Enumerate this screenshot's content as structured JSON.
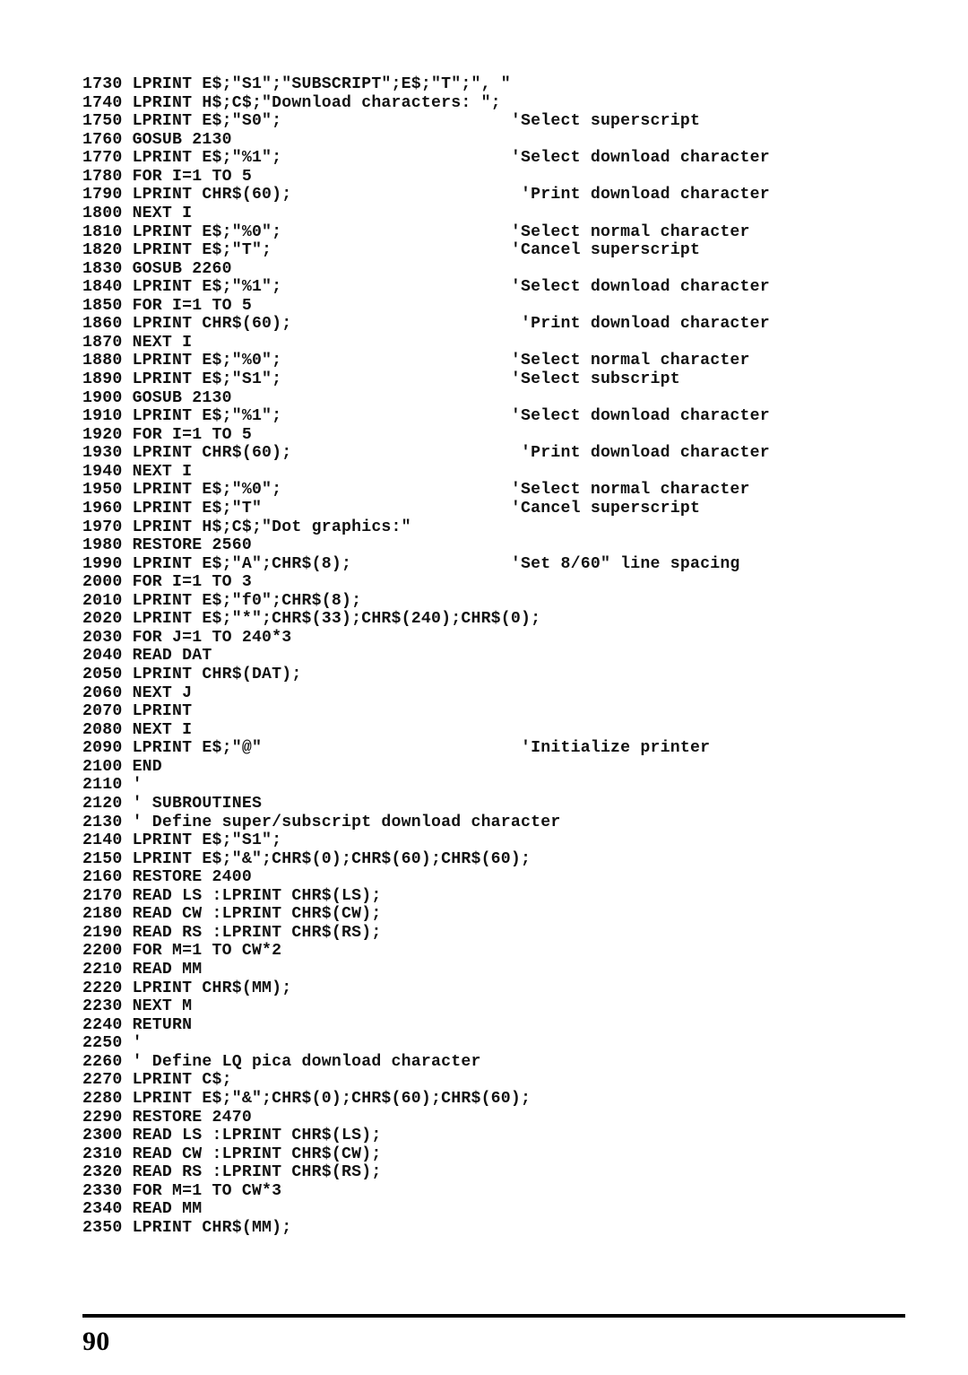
{
  "page_number": "90",
  "code_lines": [
    "1730 LPRINT E$;\"S1\";\"SUBSCRIPT\";E$;\"T\";\", \"",
    "1740 LPRINT H$;C$;\"Download characters: \";",
    "1750 LPRINT E$;\"S0\";                       'Select superscript",
    "1760 GOSUB 2130",
    "1770 LPRINT E$;\"%1\";                       'Select download character",
    "1780 FOR I=1 TO 5",
    "1790 LPRINT CHR$(60);                       'Print download character",
    "1800 NEXT I",
    "1810 LPRINT E$;\"%0\";                       'Select normal character",
    "1820 LPRINT E$;\"T\";                        'Cancel superscript",
    "1830 GOSUB 2260",
    "1840 LPRINT E$;\"%1\";                       'Select download character",
    "1850 FOR I=1 TO 5",
    "1860 LPRINT CHR$(60);                       'Print download character",
    "1870 NEXT I",
    "1880 LPRINT E$;\"%0\";                       'Select normal character",
    "1890 LPRINT E$;\"S1\";                       'Select subscript",
    "1900 GOSUB 2130",
    "1910 LPRINT E$;\"%1\";                       'Select download character",
    "1920 FOR I=1 TO 5",
    "1930 LPRINT CHR$(60);                       'Print download character",
    "1940 NEXT I",
    "1950 LPRINT E$;\"%0\";                       'Select normal character",
    "1960 LPRINT E$;\"T\"                         'Cancel superscript",
    "1970 LPRINT H$;C$;\"Dot graphics:\"",
    "1980 RESTORE 2560",
    "1990 LPRINT E$;\"A\";CHR$(8);                'Set 8/60\" line spacing",
    "2000 FOR I=1 TO 3",
    "2010 LPRINT E$;\"f0\";CHR$(8);",
    "2020 LPRINT E$;\"*\";CHR$(33);CHR$(240);CHR$(0);",
    "2030 FOR J=1 TO 240*3",
    "2040 READ DAT",
    "2050 LPRINT CHR$(DAT);",
    "2060 NEXT J",
    "2070 LPRINT",
    "2080 NEXT I",
    "2090 LPRINT E$;\"@\"                          'Initialize printer",
    "2100 END",
    "2110 '",
    "2120 ' SUBROUTINES",
    "2130 ' Define super/subscript download character",
    "2140 LPRINT E$;\"S1\";",
    "2150 LPRINT E$;\"&\";CHR$(0);CHR$(60);CHR$(60);",
    "2160 RESTORE 2400",
    "2170 READ LS :LPRINT CHR$(LS);",
    "2180 READ CW :LPRINT CHR$(CW);",
    "2190 READ RS :LPRINT CHR$(RS);",
    "2200 FOR M=1 TO CW*2",
    "2210 READ MM",
    "2220 LPRINT CHR$(MM);",
    "2230 NEXT M",
    "2240 RETURN",
    "2250 '",
    "2260 ' Define LQ pica download character",
    "2270 LPRINT C$;",
    "2280 LPRINT E$;\"&\";CHR$(0);CHR$(60);CHR$(60);",
    "2290 RESTORE 2470",
    "2300 READ LS :LPRINT CHR$(LS);",
    "2310 READ CW :LPRINT CHR$(CW);",
    "2320 READ RS :LPRINT CHR$(RS);",
    "2330 FOR M=1 TO CW*3",
    "2340 READ MM",
    "2350 LPRINT CHR$(MM);"
  ]
}
